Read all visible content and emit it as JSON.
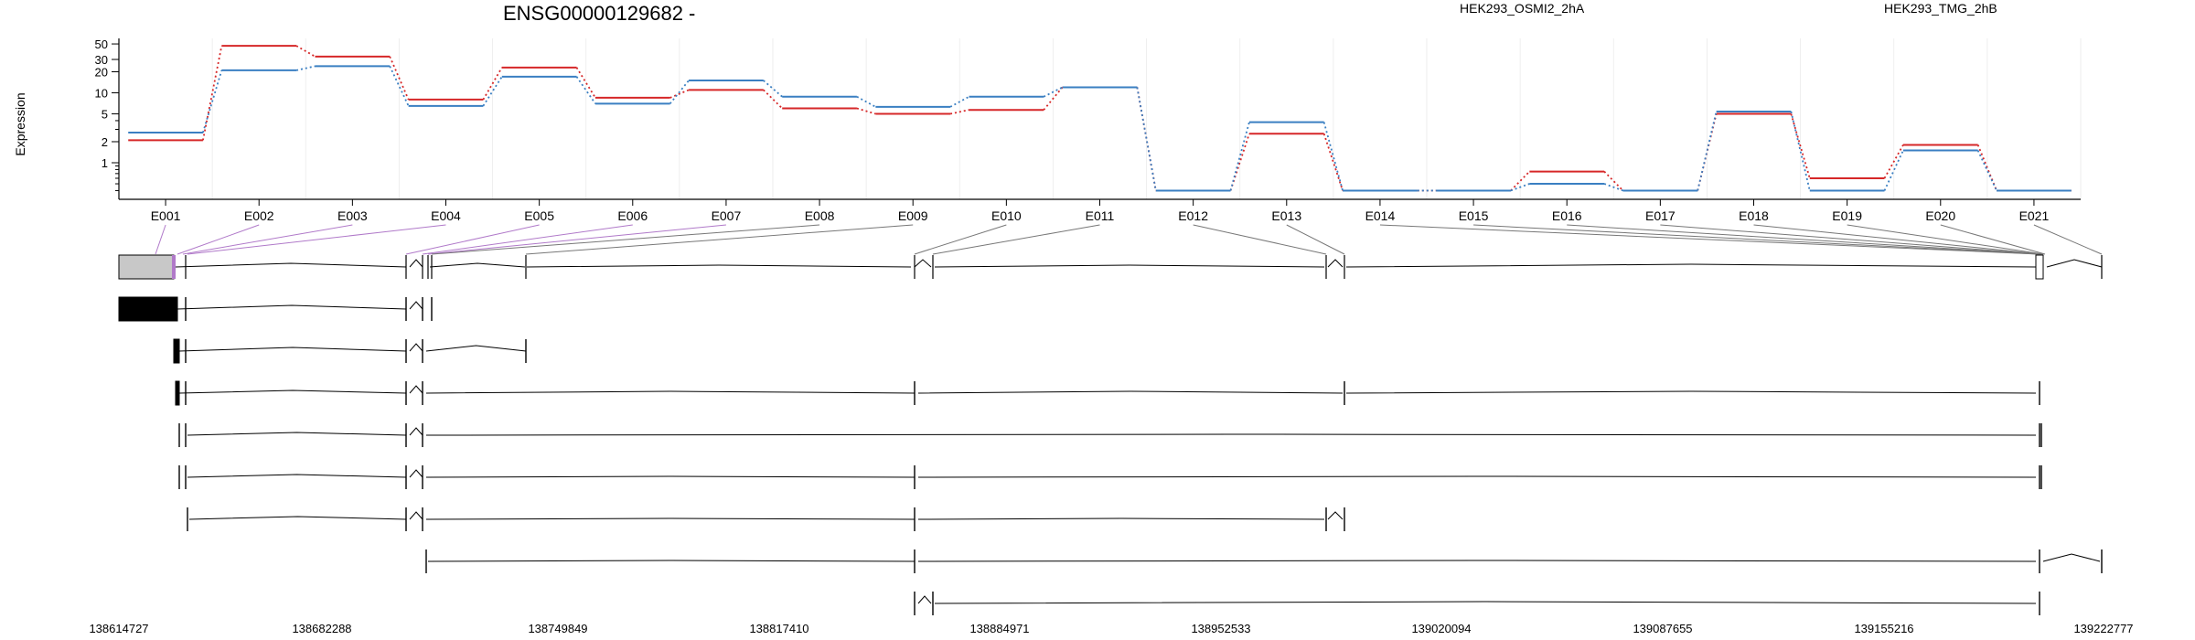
{
  "chart_data": {
    "type": "line",
    "title": "ENSG00000129682 -",
    "ylabel": "Expression",
    "xlabel": "",
    "y_scale": "log",
    "yticks": [
      1,
      2,
      5,
      10,
      20,
      30,
      50
    ],
    "ylim": [
      0.3,
      60
    ],
    "grid": "vertical",
    "legend_position": "top-right",
    "categories": [
      "E001",
      "E002",
      "E003",
      "E004",
      "E005",
      "E006",
      "E007",
      "E008",
      "E009",
      "E010",
      "E011",
      "E012",
      "E013",
      "E014",
      "E015",
      "E016",
      "E017",
      "E018",
      "E019",
      "E020",
      "E021"
    ],
    "series": [
      {
        "name": "HEK293_OSMI2_2hA",
        "color": "#d62728",
        "values": [
          2.1,
          47,
          33,
          8,
          23,
          8.5,
          11,
          6,
          5,
          5.7,
          12,
          0.4,
          2.6,
          0.4,
          0.4,
          0.75,
          0.4,
          5,
          0.6,
          1.8,
          0.4
        ]
      },
      {
        "name": "HEK293_TMG_2hB",
        "color": "#3a7fc2",
        "values": [
          2.7,
          21,
          24,
          6.5,
          17,
          7,
          15,
          8.8,
          6.3,
          8.8,
          12,
          0.4,
          3.8,
          0.4,
          0.4,
          0.5,
          0.4,
          5.4,
          0.4,
          1.5,
          0.4
        ]
      }
    ],
    "connector_style": "dotted"
  },
  "gene_model": {
    "connector_color": "#b079c9",
    "exon_fill": "#c8c8c8",
    "coordinates": [
      "138614727",
      "138682288",
      "138749849",
      "138817410",
      "138884971",
      "138952533",
      "139020094",
      "139087655",
      "139155216",
      "139222777"
    ]
  }
}
